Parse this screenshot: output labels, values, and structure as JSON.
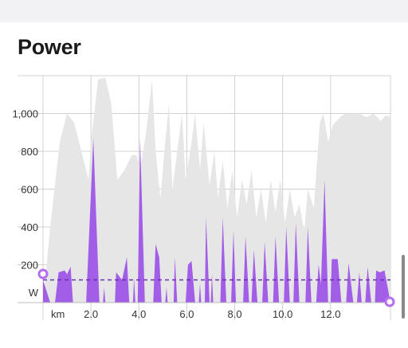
{
  "page": {
    "title": "Power"
  },
  "chart_data": {
    "type": "area",
    "title": "Power",
    "ylabel": "W",
    "xlabel": "km",
    "ylim": [
      0,
      1200
    ],
    "xlim": [
      0,
      14.5
    ],
    "y_ticks": [
      200,
      400,
      600,
      800,
      1000
    ],
    "y_tick_labels": [
      "200",
      "400",
      "600",
      "800",
      "1,000"
    ],
    "x_ticks": [
      2,
      4,
      6,
      8,
      10,
      12
    ],
    "x_tick_labels": [
      "2.0",
      "4.0",
      "6.0",
      "8.0",
      "10.0",
      "12.0"
    ],
    "average_line": 120,
    "colors": {
      "power": "#a35ee8",
      "background": "#e6e6e6",
      "accent": "#b46ef0",
      "grid": "#d0d0d0"
    },
    "series": [
      {
        "values": [
          [
            0.0,
            120
          ],
          [
            0.3,
            0
          ],
          [
            0.5,
            0
          ],
          [
            0.65,
            160
          ],
          [
            0.9,
            170
          ],
          [
            1.0,
            150
          ],
          [
            1.15,
            190
          ],
          [
            1.25,
            0
          ],
          [
            1.8,
            0
          ],
          [
            2.1,
            870
          ],
          [
            2.35,
            0
          ],
          [
            2.5,
            0
          ],
          [
            2.55,
            80
          ],
          [
            2.6,
            0
          ],
          [
            3.0,
            0
          ],
          [
            3.05,
            160
          ],
          [
            3.3,
            120
          ],
          [
            3.5,
            240
          ],
          [
            3.6,
            0
          ],
          [
            3.75,
            0
          ],
          [
            3.8,
            130
          ],
          [
            3.85,
            0
          ],
          [
            3.95,
            0
          ],
          [
            4.05,
            870
          ],
          [
            4.25,
            0
          ],
          [
            4.35,
            0
          ],
          [
            4.6,
            0
          ],
          [
            4.7,
            310
          ],
          [
            4.85,
            240
          ],
          [
            4.95,
            0
          ],
          [
            5.1,
            0
          ],
          [
            5.15,
            80
          ],
          [
            5.2,
            0
          ],
          [
            5.45,
            0
          ],
          [
            5.5,
            240
          ],
          [
            5.6,
            0
          ],
          [
            5.95,
            0
          ],
          [
            6.05,
            200
          ],
          [
            6.2,
            220
          ],
          [
            6.35,
            0
          ],
          [
            6.5,
            0
          ],
          [
            6.55,
            100
          ],
          [
            6.6,
            0
          ],
          [
            6.75,
            0
          ],
          [
            6.8,
            450
          ],
          [
            6.95,
            0
          ],
          [
            7.0,
            0
          ],
          [
            7.05,
            150
          ],
          [
            7.1,
            0
          ],
          [
            7.4,
            0
          ],
          [
            7.5,
            450
          ],
          [
            7.65,
            0
          ],
          [
            7.85,
            0
          ],
          [
            7.95,
            380
          ],
          [
            8.05,
            0
          ],
          [
            8.35,
            0
          ],
          [
            8.45,
            350
          ],
          [
            8.6,
            0
          ],
          [
            8.7,
            0
          ],
          [
            8.8,
            280
          ],
          [
            8.95,
            0
          ],
          [
            9.15,
            0
          ],
          [
            9.25,
            320
          ],
          [
            9.4,
            0
          ],
          [
            9.6,
            0
          ],
          [
            9.7,
            350
          ],
          [
            9.85,
            0
          ],
          [
            10.05,
            0
          ],
          [
            10.15,
            400
          ],
          [
            10.3,
            0
          ],
          [
            10.45,
            0
          ],
          [
            10.55,
            420
          ],
          [
            10.7,
            0
          ],
          [
            10.95,
            0
          ],
          [
            11.05,
            400
          ],
          [
            11.2,
            0
          ],
          [
            11.4,
            0
          ],
          [
            11.5,
            200
          ],
          [
            11.6,
            100
          ],
          [
            11.75,
            650
          ],
          [
            11.9,
            0
          ],
          [
            12.0,
            0
          ],
          [
            12.05,
            230
          ],
          [
            12.3,
            230
          ],
          [
            12.45,
            0
          ],
          [
            12.65,
            0
          ],
          [
            12.75,
            210
          ],
          [
            12.95,
            0
          ],
          [
            13.1,
            0
          ],
          [
            13.2,
            160
          ],
          [
            13.3,
            0
          ],
          [
            13.45,
            0
          ],
          [
            13.55,
            190
          ],
          [
            13.7,
            0
          ],
          [
            13.85,
            0
          ],
          [
            13.9,
            170
          ],
          [
            14.05,
            160
          ],
          [
            14.25,
            170
          ],
          [
            14.5,
            0
          ]
        ]
      },
      {
        "values": [
          [
            0.0,
            0
          ],
          [
            0.3,
            400
          ],
          [
            0.7,
            850
          ],
          [
            1.0,
            1000
          ],
          [
            1.3,
            950
          ],
          [
            1.6,
            800
          ],
          [
            1.9,
            650
          ],
          [
            2.0,
            850
          ],
          [
            2.3,
            1180
          ],
          [
            2.6,
            1190
          ],
          [
            2.85,
            1050
          ],
          [
            3.1,
            650
          ],
          [
            3.4,
            700
          ],
          [
            3.7,
            780
          ],
          [
            3.9,
            780
          ],
          [
            4.05,
            700
          ],
          [
            4.3,
            900
          ],
          [
            4.55,
            1180
          ],
          [
            4.7,
            800
          ],
          [
            4.9,
            550
          ],
          [
            5.1,
            850
          ],
          [
            5.25,
            1050
          ],
          [
            5.4,
            600
          ],
          [
            5.6,
            800
          ],
          [
            5.8,
            1000
          ],
          [
            5.95,
            650
          ],
          [
            6.2,
            850
          ],
          [
            6.35,
            1000
          ],
          [
            6.55,
            700
          ],
          [
            6.7,
            950
          ],
          [
            6.95,
            620
          ],
          [
            7.15,
            800
          ],
          [
            7.3,
            550
          ],
          [
            7.5,
            750
          ],
          [
            7.7,
            500
          ],
          [
            7.9,
            700
          ],
          [
            8.1,
            450
          ],
          [
            8.3,
            650
          ],
          [
            8.5,
            520
          ],
          [
            8.7,
            700
          ],
          [
            8.9,
            450
          ],
          [
            9.1,
            600
          ],
          [
            9.3,
            420
          ],
          [
            9.5,
            650
          ],
          [
            9.7,
            480
          ],
          [
            9.9,
            650
          ],
          [
            10.1,
            420
          ],
          [
            10.3,
            600
          ],
          [
            10.5,
            450
          ],
          [
            10.7,
            520
          ],
          [
            10.9,
            380
          ],
          [
            11.05,
            600
          ],
          [
            11.3,
            500
          ],
          [
            11.55,
            950
          ],
          [
            11.7,
            1000
          ],
          [
            11.9,
            850
          ],
          [
            12.1,
            940
          ],
          [
            12.4,
            980
          ],
          [
            12.6,
            1000
          ],
          [
            12.9,
            1000
          ],
          [
            13.2,
            1000
          ],
          [
            13.5,
            980
          ],
          [
            13.8,
            1000
          ],
          [
            14.1,
            960
          ],
          [
            14.3,
            990
          ],
          [
            14.5,
            980
          ],
          [
            14.5,
            0
          ]
        ]
      }
    ]
  }
}
